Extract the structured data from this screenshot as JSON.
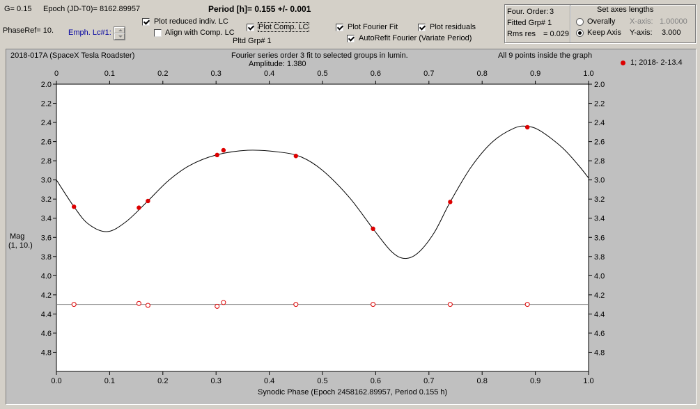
{
  "header": {
    "g_label": "G= 0.15",
    "epoch_label": "Epoch (JD-T0)= 8162.89957",
    "period_label": "Period [h]= 0.155 +/- 0.001",
    "phaseref_label": "PhaseRef= 10.",
    "emph_label": "Emph. Lc#1:"
  },
  "options": {
    "plot_reduced": {
      "label": "Plot reduced indiv. LC",
      "checked": true
    },
    "align_comp": {
      "label": "Align with Comp. LC",
      "checked": false
    },
    "plot_comp": {
      "label": "Plot Comp. LC",
      "checked": true
    },
    "pltd_grp": "Pltd Grp#  1",
    "plot_fourier": {
      "label": "Plot Fourier Fit",
      "checked": true
    },
    "plot_residuals": {
      "label": "Plot residuals",
      "checked": true
    },
    "autorefit": {
      "label": "AutoRefit Fourier (Variate Period)",
      "checked": true
    }
  },
  "fourier_info": {
    "order_label": "Four. Order:",
    "order_value": "3",
    "fitted_label": "Fitted Grp# 1",
    "rms_label": "Rms res",
    "rms_value": "= 0.029"
  },
  "axes_box": {
    "title": "Set axes lengths",
    "overally": "Overally",
    "keep_axis": "Keep Axis",
    "selected": "keep_axis",
    "x_label": "X-axis:",
    "x_value": "1.00000",
    "y_label": "Y-axis:",
    "y_value": "3.000"
  },
  "plot_header": {
    "object": "2018-017A (SpaceX Tesla Roadster)",
    "fit_desc": "Fourier series order 3 fit to selected groups in lumin.",
    "amplitude": "Amplitude: 1.380",
    "points_note": "All 9 points inside the graph",
    "legend": "1; 2018- 2-13.4"
  },
  "chart_data": {
    "type": "scatter",
    "xlabel": "Synodic Phase (Epoch 2458162.89957, Period 0.155 h)",
    "ylabel": "Mag",
    "ylabel2": "(1, 10.)",
    "xlim": [
      0.0,
      1.0
    ],
    "ylim": [
      2.0,
      5.0
    ],
    "y_inverted": true,
    "x_ticks": [
      "0.0",
      "0.1",
      "0.2",
      "0.3",
      "0.4",
      "0.5",
      "0.6",
      "0.7",
      "0.8",
      "0.9",
      "1.0"
    ],
    "x_ticks_top": [
      "0",
      "0.1",
      "0.2",
      "0.3",
      "0.4",
      "0.5",
      "0.6",
      "0.7",
      "0.8",
      "0.9",
      "1.0"
    ],
    "y_ticks": [
      "2.0",
      "2.2",
      "2.4",
      "2.6",
      "2.8",
      "3.0",
      "3.2",
      "3.4",
      "3.6",
      "3.8",
      "4.0",
      "4.2",
      "4.4",
      "4.6",
      "4.8"
    ],
    "points_color": "#dd0000",
    "fit_color": "#000000",
    "residual_line_color": "#808080",
    "residual_base": 4.3,
    "points": [
      {
        "x": 0.033,
        "y": 3.28
      },
      {
        "x": 0.155,
        "y": 3.29
      },
      {
        "x": 0.172,
        "y": 3.22
      },
      {
        "x": 0.302,
        "y": 2.74
      },
      {
        "x": 0.314,
        "y": 2.69
      },
      {
        "x": 0.45,
        "y": 2.75
      },
      {
        "x": 0.595,
        "y": 3.51
      },
      {
        "x": 0.74,
        "y": 3.23
      },
      {
        "x": 0.885,
        "y": 2.45
      }
    ],
    "residuals": [
      {
        "x": 0.033,
        "y": 4.3
      },
      {
        "x": 0.155,
        "y": 4.29
      },
      {
        "x": 0.172,
        "y": 4.31
      },
      {
        "x": 0.302,
        "y": 4.32
      },
      {
        "x": 0.314,
        "y": 4.28
      },
      {
        "x": 0.45,
        "y": 4.3
      },
      {
        "x": 0.595,
        "y": 4.3
      },
      {
        "x": 0.74,
        "y": 4.3
      },
      {
        "x": 0.885,
        "y": 4.3
      }
    ],
    "fit_curve": [
      [
        0.0,
        3.0
      ],
      [
        0.033,
        3.28
      ],
      [
        0.06,
        3.46
      ],
      [
        0.095,
        3.54
      ],
      [
        0.13,
        3.44
      ],
      [
        0.17,
        3.23
      ],
      [
        0.21,
        3.01
      ],
      [
        0.25,
        2.85
      ],
      [
        0.3,
        2.74
      ],
      [
        0.36,
        2.69
      ],
      [
        0.42,
        2.71
      ],
      [
        0.46,
        2.76
      ],
      [
        0.5,
        2.9
      ],
      [
        0.55,
        3.18
      ],
      [
        0.595,
        3.51
      ],
      [
        0.63,
        3.75
      ],
      [
        0.655,
        3.82
      ],
      [
        0.68,
        3.76
      ],
      [
        0.71,
        3.55
      ],
      [
        0.74,
        3.23
      ],
      [
        0.78,
        2.86
      ],
      [
        0.82,
        2.6
      ],
      [
        0.86,
        2.46
      ],
      [
        0.885,
        2.44
      ],
      [
        0.91,
        2.49
      ],
      [
        0.95,
        2.66
      ],
      [
        0.98,
        2.84
      ],
      [
        1.0,
        2.98
      ]
    ]
  }
}
